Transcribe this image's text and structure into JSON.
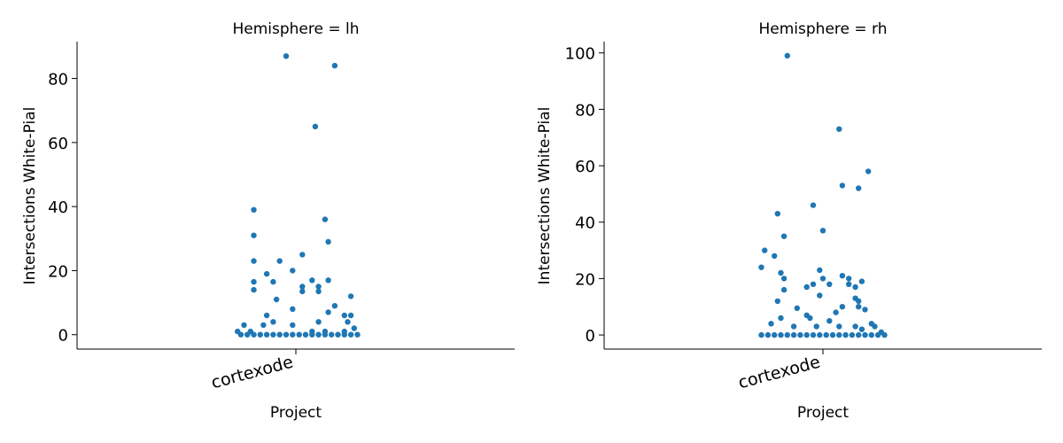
{
  "chart_data": [
    {
      "type": "scatter",
      "title": "Hemisphere = lh",
      "xlabel": "Project",
      "ylabel": "Intersections White-Pial",
      "categories": [
        "cortexode"
      ],
      "ylim": [
        -4.5,
        91.5
      ],
      "yticks": [
        0,
        20,
        40,
        60,
        80
      ],
      "color": "#1f77b4",
      "series": [
        {
          "category": "cortexode",
          "points": [
            {
              "jitter": -0.03,
              "y": 87
            },
            {
              "jitter": 0.12,
              "y": 84
            },
            {
              "jitter": 0.06,
              "y": 65
            },
            {
              "jitter": -0.13,
              "y": 39
            },
            {
              "jitter": 0.09,
              "y": 36
            },
            {
              "jitter": -0.13,
              "y": 31
            },
            {
              "jitter": 0.1,
              "y": 29
            },
            {
              "jitter": 0.02,
              "y": 25
            },
            {
              "jitter": -0.13,
              "y": 23
            },
            {
              "jitter": -0.05,
              "y": 23
            },
            {
              "jitter": -0.01,
              "y": 20
            },
            {
              "jitter": -0.09,
              "y": 19
            },
            {
              "jitter": 0.05,
              "y": 17
            },
            {
              "jitter": 0.1,
              "y": 17
            },
            {
              "jitter": -0.13,
              "y": 16.5
            },
            {
              "jitter": -0.07,
              "y": 16.5
            },
            {
              "jitter": 0.02,
              "y": 15
            },
            {
              "jitter": 0.07,
              "y": 15
            },
            {
              "jitter": -0.13,
              "y": 14
            },
            {
              "jitter": 0.02,
              "y": 13.5
            },
            {
              "jitter": 0.07,
              "y": 13.5
            },
            {
              "jitter": 0.17,
              "y": 12
            },
            {
              "jitter": -0.06,
              "y": 11
            },
            {
              "jitter": 0.12,
              "y": 9
            },
            {
              "jitter": -0.01,
              "y": 8
            },
            {
              "jitter": 0.1,
              "y": 7
            },
            {
              "jitter": -0.09,
              "y": 6
            },
            {
              "jitter": 0.15,
              "y": 6
            },
            {
              "jitter": 0.17,
              "y": 6
            },
            {
              "jitter": -0.07,
              "y": 4
            },
            {
              "jitter": 0.07,
              "y": 4
            },
            {
              "jitter": 0.16,
              "y": 4
            },
            {
              "jitter": -0.16,
              "y": 3
            },
            {
              "jitter": -0.1,
              "y": 3
            },
            {
              "jitter": -0.01,
              "y": 3
            },
            {
              "jitter": 0.18,
              "y": 2
            },
            {
              "jitter": -0.18,
              "y": 1
            },
            {
              "jitter": -0.14,
              "y": 1
            },
            {
              "jitter": 0.05,
              "y": 1
            },
            {
              "jitter": 0.09,
              "y": 1
            },
            {
              "jitter": 0.15,
              "y": 1
            },
            {
              "jitter": -0.17,
              "y": 0
            },
            {
              "jitter": -0.15,
              "y": 0
            },
            {
              "jitter": -0.13,
              "y": 0
            },
            {
              "jitter": -0.11,
              "y": 0
            },
            {
              "jitter": -0.09,
              "y": 0
            },
            {
              "jitter": -0.07,
              "y": 0
            },
            {
              "jitter": -0.05,
              "y": 0
            },
            {
              "jitter": -0.03,
              "y": 0
            },
            {
              "jitter": -0.01,
              "y": 0
            },
            {
              "jitter": 0.01,
              "y": 0
            },
            {
              "jitter": 0.03,
              "y": 0
            },
            {
              "jitter": 0.05,
              "y": 0
            },
            {
              "jitter": 0.07,
              "y": 0
            },
            {
              "jitter": 0.09,
              "y": 0
            },
            {
              "jitter": 0.11,
              "y": 0
            },
            {
              "jitter": 0.13,
              "y": 0
            },
            {
              "jitter": 0.15,
              "y": 0
            },
            {
              "jitter": 0.17,
              "y": 0
            },
            {
              "jitter": 0.19,
              "y": 0
            }
          ]
        }
      ]
    },
    {
      "type": "scatter",
      "title": "Hemisphere = rh",
      "xlabel": "Project",
      "ylabel": "Intersections White-Pial",
      "categories": [
        "cortexode"
      ],
      "ylim": [
        -5,
        104
      ],
      "yticks": [
        0,
        20,
        40,
        60,
        80,
        100
      ],
      "color": "#1f77b4",
      "series": [
        {
          "category": "cortexode",
          "points": [
            {
              "jitter": -0.11,
              "y": 99
            },
            {
              "jitter": 0.05,
              "y": 73
            },
            {
              "jitter": 0.14,
              "y": 58
            },
            {
              "jitter": 0.06,
              "y": 53
            },
            {
              "jitter": 0.11,
              "y": 52
            },
            {
              "jitter": -0.03,
              "y": 46
            },
            {
              "jitter": -0.14,
              "y": 43
            },
            {
              "jitter": 0.0,
              "y": 37
            },
            {
              "jitter": -0.12,
              "y": 35
            },
            {
              "jitter": -0.18,
              "y": 30
            },
            {
              "jitter": -0.15,
              "y": 28
            },
            {
              "jitter": -0.19,
              "y": 24
            },
            {
              "jitter": -0.01,
              "y": 23
            },
            {
              "jitter": -0.13,
              "y": 22
            },
            {
              "jitter": 0.06,
              "y": 21
            },
            {
              "jitter": -0.12,
              "y": 20
            },
            {
              "jitter": 0.0,
              "y": 20
            },
            {
              "jitter": 0.08,
              "y": 20
            },
            {
              "jitter": 0.12,
              "y": 19
            },
            {
              "jitter": -0.03,
              "y": 18
            },
            {
              "jitter": 0.02,
              "y": 18
            },
            {
              "jitter": 0.08,
              "y": 18
            },
            {
              "jitter": -0.05,
              "y": 17
            },
            {
              "jitter": 0.1,
              "y": 17
            },
            {
              "jitter": -0.12,
              "y": 16
            },
            {
              "jitter": -0.01,
              "y": 14
            },
            {
              "jitter": 0.1,
              "y": 13
            },
            {
              "jitter": -0.14,
              "y": 12
            },
            {
              "jitter": 0.11,
              "y": 12
            },
            {
              "jitter": 0.06,
              "y": 10
            },
            {
              "jitter": 0.11,
              "y": 10
            },
            {
              "jitter": -0.08,
              "y": 9.5
            },
            {
              "jitter": 0.13,
              "y": 9
            },
            {
              "jitter": 0.04,
              "y": 8
            },
            {
              "jitter": -0.05,
              "y": 7
            },
            {
              "jitter": -0.13,
              "y": 6
            },
            {
              "jitter": -0.04,
              "y": 6
            },
            {
              "jitter": 0.02,
              "y": 5
            },
            {
              "jitter": -0.16,
              "y": 4
            },
            {
              "jitter": 0.15,
              "y": 4
            },
            {
              "jitter": -0.09,
              "y": 3
            },
            {
              "jitter": -0.02,
              "y": 3
            },
            {
              "jitter": 0.05,
              "y": 3
            },
            {
              "jitter": 0.1,
              "y": 3
            },
            {
              "jitter": 0.16,
              "y": 3
            },
            {
              "jitter": 0.12,
              "y": 2
            },
            {
              "jitter": 0.18,
              "y": 1
            },
            {
              "jitter": -0.19,
              "y": 0
            },
            {
              "jitter": -0.17,
              "y": 0
            },
            {
              "jitter": -0.15,
              "y": 0
            },
            {
              "jitter": -0.13,
              "y": 0
            },
            {
              "jitter": -0.11,
              "y": 0
            },
            {
              "jitter": -0.09,
              "y": 0
            },
            {
              "jitter": -0.07,
              "y": 0
            },
            {
              "jitter": -0.05,
              "y": 0
            },
            {
              "jitter": -0.03,
              "y": 0
            },
            {
              "jitter": -0.01,
              "y": 0
            },
            {
              "jitter": 0.01,
              "y": 0
            },
            {
              "jitter": 0.03,
              "y": 0
            },
            {
              "jitter": 0.05,
              "y": 0
            },
            {
              "jitter": 0.07,
              "y": 0
            },
            {
              "jitter": 0.09,
              "y": 0
            },
            {
              "jitter": 0.11,
              "y": 0
            },
            {
              "jitter": 0.13,
              "y": 0
            },
            {
              "jitter": 0.15,
              "y": 0
            },
            {
              "jitter": 0.17,
              "y": 0
            },
            {
              "jitter": 0.19,
              "y": 0
            }
          ]
        }
      ]
    }
  ]
}
